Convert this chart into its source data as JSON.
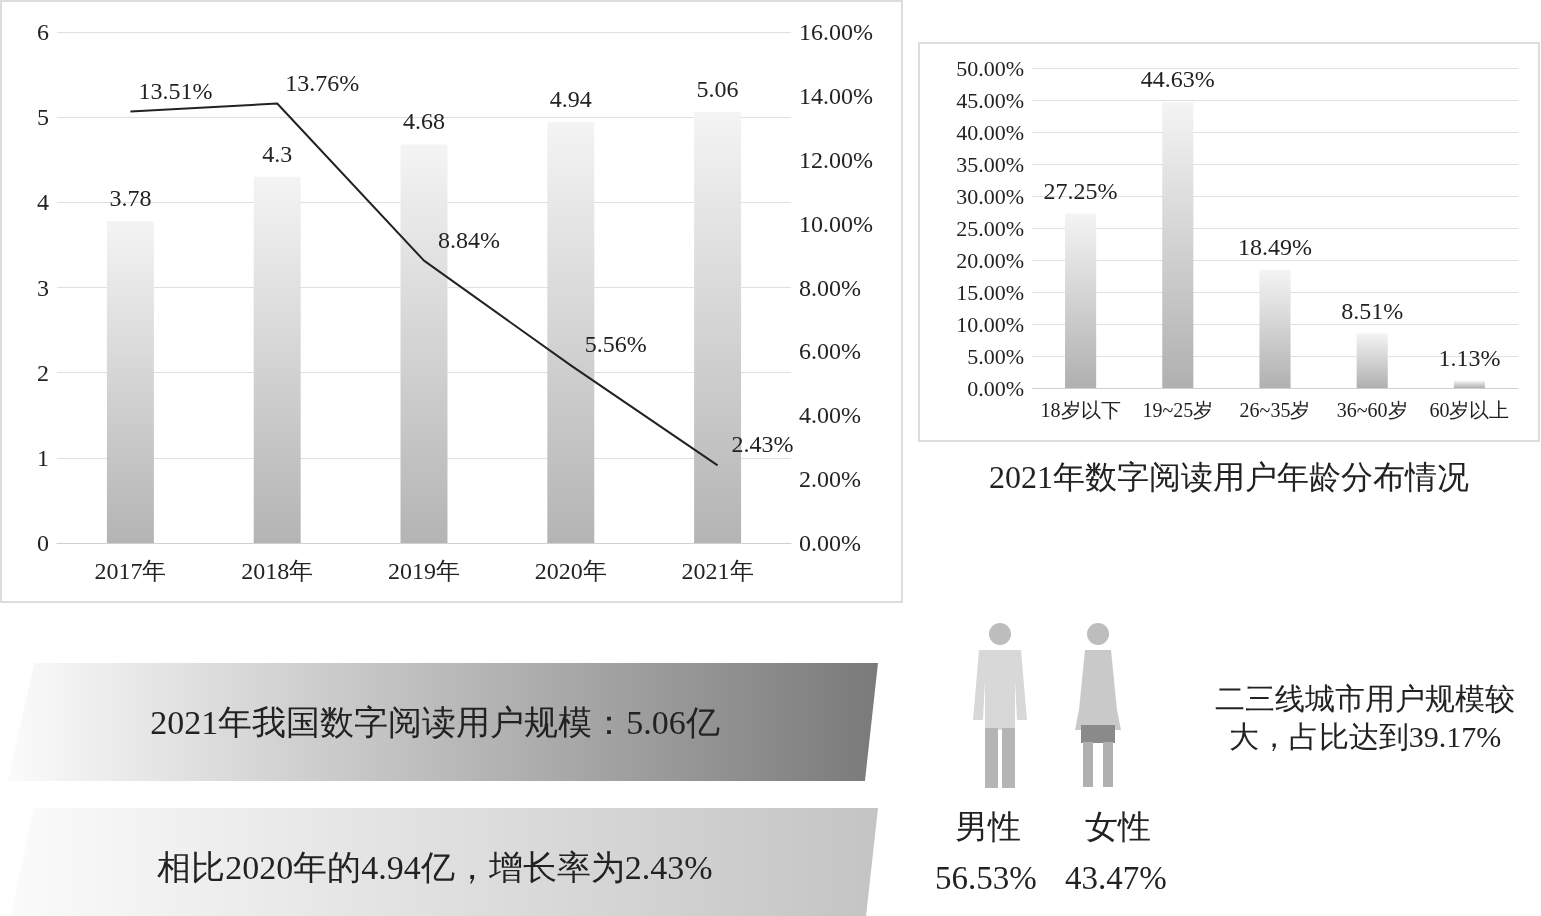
{
  "chart_data": [
    {
      "type": "bar",
      "categories": [
        "2017年",
        "2018年",
        "2019年",
        "2020年",
        "2021年"
      ],
      "ylim": [
        0,
        6
      ],
      "yticks": [
        0,
        1,
        2,
        3,
        4,
        5,
        6
      ],
      "y2lim": [
        0,
        16
      ],
      "y2ticks": [
        {
          "value": 0,
          "label": "0.00%"
        },
        {
          "value": 2,
          "label": "2.00%"
        },
        {
          "value": 4,
          "label": "4.00%"
        },
        {
          "value": 6,
          "label": "6.00%"
        },
        {
          "value": 8,
          "label": "8.00%"
        },
        {
          "value": 10,
          "label": "10.00%"
        },
        {
          "value": 12,
          "label": "12.00%"
        },
        {
          "value": 14,
          "label": "14.00%"
        },
        {
          "value": 16,
          "label": "16.00%"
        }
      ],
      "grid": "y",
      "series": [
        {
          "type": "bar",
          "color": "#b4b4b4",
          "values": [
            3.78,
            4.3,
            4.68,
            4.94,
            5.06
          ],
          "value_labels": [
            "3.78",
            "4.3",
            "4.68",
            "4.94",
            "5.06"
          ]
        },
        {
          "type": "line",
          "axis": "y2",
          "color": "#222222",
          "values": [
            13.51,
            13.76,
            8.84,
            5.56,
            2.43
          ],
          "value_labels": [
            "13.51%",
            "13.76%",
            "8.84%",
            "5.56%",
            "2.43%"
          ]
        }
      ]
    },
    {
      "type": "bar",
      "title": "2021年数字阅读用户年龄分布情况",
      "categories": [
        "18岁以下",
        "19~25岁",
        "26~35岁",
        "36~60岁",
        "60岁以上"
      ],
      "ylim": [
        0,
        50
      ],
      "yticks": [
        {
          "value": 0,
          "label": "0.00%"
        },
        {
          "value": 5,
          "label": "5.00%"
        },
        {
          "value": 10,
          "label": "10.00%"
        },
        {
          "value": 15,
          "label": "15.00%"
        },
        {
          "value": 20,
          "label": "20.00%"
        },
        {
          "value": 25,
          "label": "25.00%"
        },
        {
          "value": 30,
          "label": "30.00%"
        },
        {
          "value": 35,
          "label": "35.00%"
        },
        {
          "value": 40,
          "label": "40.00%"
        },
        {
          "value": 45,
          "label": "45.00%"
        },
        {
          "value": 50,
          "label": "50.00%"
        }
      ],
      "grid": "y",
      "color": "#b0b0b0",
      "values": [
        27.25,
        44.63,
        18.49,
        8.51,
        1.13
      ],
      "value_labels": [
        "27.25%",
        "44.63%",
        "18.49%",
        "8.51%",
        "1.13%"
      ]
    },
    {
      "type": "other",
      "annotations": [
        "2021年我国数字阅读用户规模：5.06亿",
        "相比2020年的4.94亿，增长率为2.43%"
      ]
    },
    {
      "type": "other",
      "annotations": [
        "男性",
        "女性",
        "56.53%",
        "43.47%",
        "二三线城市用户规模较大，占比达到39.17%"
      ]
    }
  ]
}
